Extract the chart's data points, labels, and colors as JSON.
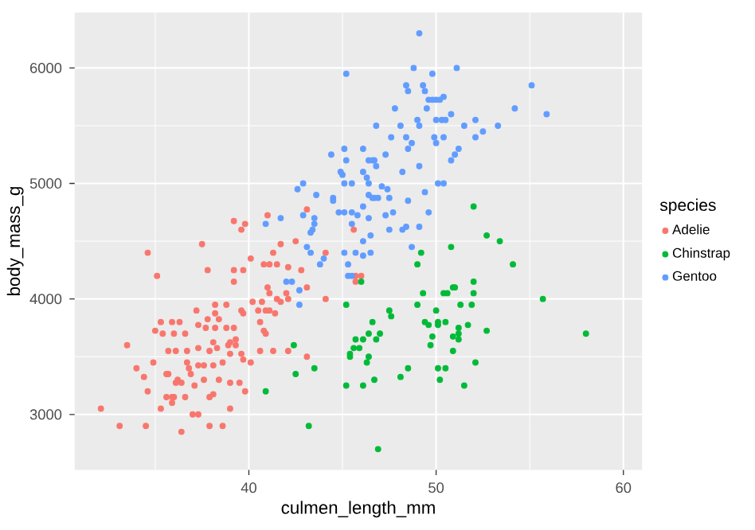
{
  "chart_data": {
    "type": "scatter",
    "xlabel": "culmen_length_mm",
    "ylabel": "body_mass_g",
    "legend_title": "species",
    "xlim": [
      30.7,
      61.0
    ],
    "ylim": [
      2520,
      6480
    ],
    "xticks": [
      40,
      50,
      60
    ],
    "yticks": [
      3000,
      4000,
      5000,
      6000
    ],
    "grid": true,
    "legend": "right",
    "marker": "circle",
    "series": [
      {
        "name": "Adelie",
        "color": "#f8766d",
        "x": [
          32.1,
          33.1,
          34.5,
          36.4,
          34.6,
          35.1,
          37.5,
          37.8,
          39.2,
          39.2,
          39.7,
          40.1,
          40.8,
          41.1,
          41.5,
          41.3,
          41.7,
          41.0,
          41.1,
          41.5,
          40.2,
          40.7,
          40.5,
          40.9,
          41.1,
          41.4,
          41.7,
          38.2,
          38.8,
          38.2,
          37.2,
          39.6,
          39.7,
          35.3,
          35.9,
          36.3,
          35.0,
          35.4,
          36.0,
          36.6,
          37.3,
          37.7,
          38.2,
          38.8,
          39.2,
          37.8,
          38.4,
          40.6,
          40.8,
          40.9,
          39.3,
          39.0,
          38.9,
          39.3,
          38.1,
          38.3,
          37.9,
          37.3,
          36.7,
          36.1,
          35.7,
          33.5,
          34.9,
          34.0,
          34.4,
          35.6,
          35.7,
          36.2,
          36.7,
          36.8,
          36.9,
          37.3,
          37.6,
          38.1,
          38.6,
          39.0,
          39.6,
          39.7,
          40.1,
          40.6,
          41.3,
          34.6,
          35.3,
          35.9,
          36.0,
          35.6,
          35.9,
          36.6,
          37.0,
          37.3,
          37.9,
          38.6,
          39.0,
          39.8,
          39.5,
          39.0,
          38.1,
          37.9,
          37.6,
          38.4,
          37.1,
          36.4,
          36.1,
          42.5,
          44.1,
          42.1,
          42.8,
          43.1,
          42.0,
          42.1,
          44.1,
          45.7,
          46.0,
          45.7,
          42.1,
          43.1,
          39.2,
          39.6,
          39.8,
          41.0,
          43.1,
          45.6
        ],
        "values": [
          3050,
          2900,
          2900,
          2850,
          4400,
          4200,
          4475,
          4250,
          4250,
          4150,
          4250,
          4350,
          4300,
          4300,
          4300,
          4400,
          4475,
          4100,
          4050,
          4000,
          3975,
          3975,
          3900,
          3900,
          3900,
          3875,
          3975,
          3950,
          3950,
          3875,
          3900,
          3900,
          3875,
          3800,
          3800,
          3800,
          3725,
          3700,
          3700,
          3700,
          3775,
          3750,
          3750,
          3750,
          3750,
          3825,
          3825,
          3800,
          3725,
          3700,
          3650,
          3625,
          3600,
          3600,
          3625,
          3575,
          3550,
          3575,
          3550,
          3550,
          3550,
          3600,
          3450,
          3400,
          3325,
          3350,
          3350,
          3300,
          3450,
          3400,
          3350,
          3425,
          3425,
          3425,
          3450,
          3525,
          3525,
          3475,
          3450,
          3550,
          3550,
          3200,
          3050,
          3100,
          3150,
          3150,
          3150,
          3150,
          3000,
          3000,
          2900,
          2900,
          3050,
          3200,
          3275,
          3275,
          3175,
          3150,
          3300,
          3300,
          3250,
          3275,
          3275,
          4500,
          4400,
          4275,
          4250,
          4100,
          4050,
          4000,
          4000,
          4150,
          4200,
          4200,
          3550,
          3500,
          4675,
          4600,
          4650,
          4725,
          4775,
          4600
        ]
      },
      {
        "name": "Chinstrap",
        "color": "#00ba38",
        "x": [
          40.9,
          43.2,
          42.4,
          42.5,
          43.5,
          46.9,
          45.2,
          45.2,
          46.1,
          46.7,
          46.3,
          46.4,
          45.4,
          45.6,
          45.4,
          45.7,
          45.9,
          46.1,
          46.4,
          46.6,
          46.8,
          47.0,
          47.5,
          47.6,
          48.1,
          48.5,
          49.0,
          49.3,
          49.0,
          49.2,
          50.8,
          52.7,
          53.4,
          54.1,
          50.0,
          49.4,
          49.6,
          50.1,
          50.1,
          50.5,
          49.8,
          49.7,
          50.9,
          51.2,
          51.2,
          51.2,
          51.7,
          50.9,
          50.4,
          50.6,
          50.9,
          51.0,
          51.3,
          51.9,
          52.0,
          52.0,
          52.7,
          52.1,
          51.5,
          50.1,
          50.5,
          50.2,
          55.7,
          58.0,
          52.0,
          46.0
        ],
        "values": [
          3200,
          2900,
          3600,
          3350,
          3400,
          2700,
          3950,
          3250,
          3250,
          3300,
          3450,
          3500,
          3525,
          3575,
          3500,
          3650,
          3575,
          3650,
          3700,
          3800,
          3650,
          3700,
          3900,
          3850,
          3325,
          3400,
          3950,
          4050,
          4300,
          4400,
          4450,
          4550,
          4500,
          4300,
          3900,
          3800,
          3775,
          3800,
          3775,
          3800,
          3675,
          3600,
          3675,
          3750,
          3700,
          3650,
          3775,
          3550,
          4050,
          4050,
          4100,
          4100,
          3950,
          3950,
          4050,
          4150,
          3725,
          3450,
          3250,
          3400,
          3400,
          3300,
          4000,
          3700,
          4800,
          4150
        ]
      },
      {
        "name": "Gentoo",
        "color": "#619cff",
        "x": [
          40.9,
          41.7,
          49.1,
          45.2,
          48.8,
          49.8,
          51.1,
          55.1,
          55.9,
          54.2,
          48.4,
          48.5,
          49.3,
          49.4,
          49.6,
          49.8,
          50.0,
          50.2,
          50.4,
          47.8,
          49.5,
          50.8,
          50.5,
          50.3,
          50.0,
          49.0,
          52.1,
          46.8,
          48.1,
          49.1,
          51.5,
          53.3,
          52.5,
          52.1,
          47.6,
          48.4,
          49.9,
          50.4,
          48.7,
          50.0,
          48.5,
          51.2,
          51.0,
          47.3,
          50.8,
          44.4,
          45.1,
          46.1,
          45.2,
          46.4,
          46.6,
          46.7,
          46.8,
          44.9,
          46.1,
          48.2,
          49.1,
          45.0,
          45.1,
          45.5,
          46.3,
          46.4,
          42.9,
          42.6,
          43.6,
          50.1,
          50.4,
          47.1,
          47.4,
          46.4,
          46.9,
          46.7,
          46.6,
          44.5,
          44.5,
          47.5,
          49.4,
          46.1,
          48.5,
          44.8,
          45.1,
          45.5,
          45.8,
          47.7,
          47.3,
          49.6,
          42.9,
          43.5,
          43.5,
          43.4,
          45.5,
          46.4,
          48.4,
          48.2,
          47.5,
          49.1,
          43.3,
          46.1,
          46.5,
          48.7,
          43.1,
          43.3,
          44.0,
          43.8,
          45.1,
          45.7,
          46.1,
          46.5,
          45.3,
          45.3,
          45.5,
          42.0,
          42.3,
          42.7,
          42.7
        ],
        "values": [
          4650,
          4700,
          6300,
          5950,
          6000,
          5950,
          6000,
          5850,
          5600,
          5650,
          5850,
          5800,
          5850,
          5800,
          5725,
          5725,
          5725,
          5725,
          5750,
          5650,
          5650,
          5600,
          5550,
          5550,
          5550,
          5550,
          5550,
          5500,
          5500,
          5500,
          5500,
          5500,
          5450,
          5400,
          5400,
          5400,
          5400,
          5400,
          5350,
          5350,
          5300,
          5300,
          5250,
          5250,
          5200,
          5250,
          5300,
          5300,
          5200,
          5200,
          5200,
          5200,
          5150,
          5100,
          5100,
          5100,
          5150,
          5075,
          5000,
          5000,
          5050,
          5000,
          5000,
          4950,
          4900,
          5000,
          5000,
          4975,
          4950,
          4900,
          4875,
          4875,
          4875,
          4875,
          4850,
          4875,
          4925,
          4800,
          4850,
          4750,
          4750,
          4750,
          4725,
          4750,
          4725,
          4750,
          4725,
          4700,
          4650,
          4600,
          4650,
          4700,
          4625,
          4600,
          4600,
          4625,
          4575,
          4500,
          4550,
          4450,
          4450,
          4400,
          4350,
          4300,
          4400,
          4400,
          4375,
          4400,
          4300,
          4200,
          4200,
          4150,
          4150,
          4075,
          3950
        ]
      }
    ]
  }
}
